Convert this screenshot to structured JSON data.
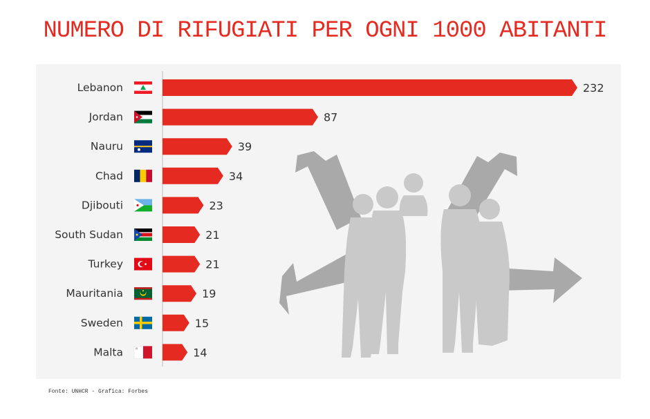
{
  "header": {
    "title": "NUMERO DI RIFUGIATI PER OGNI 1000 ABITANTI"
  },
  "footer": {
    "source": "Fonte: UNHCR - Grafica: Forbes"
  },
  "colors": {
    "bar": "#e52b21",
    "panel": "#f4f4f4",
    "silhouette": "#c9c9c9",
    "arrow": "#a9a9a9",
    "text": "#333333"
  },
  "chart_data": {
    "type": "bar",
    "orientation": "horizontal",
    "categories": [
      "Lebanon",
      "Jordan",
      "Nauru",
      "Chad",
      "Djibouti",
      "South Sudan",
      "Turkey",
      "Mauritania",
      "Sweden",
      "Malta"
    ],
    "values": [
      232,
      87,
      39,
      34,
      23,
      21,
      21,
      19,
      15,
      14
    ],
    "data_labels": [
      "232",
      "87",
      "39",
      "34",
      "23",
      "21",
      "21",
      "19",
      "15",
      "14"
    ],
    "flags": [
      "lebanon-flag-icon",
      "jordan-flag-icon",
      "nauru-flag-icon",
      "chad-flag-icon",
      "djibouti-flag-icon",
      "south-sudan-flag-icon",
      "turkey-flag-icon",
      "mauritania-flag-icon",
      "sweden-flag-icon",
      "malta-flag-icon"
    ],
    "xlim": [
      0,
      232
    ],
    "grid": false,
    "legend": "none",
    "title": "NUMERO DI RIFUGIATI PER OGNI 1000 ABITANTI"
  }
}
